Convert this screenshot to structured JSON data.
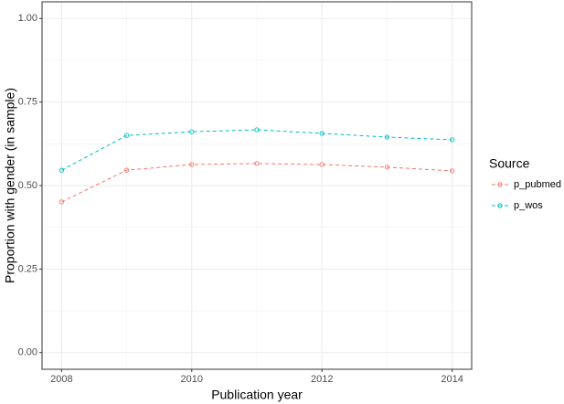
{
  "chart_data": {
    "type": "line",
    "x_label": "Publication year",
    "y_label": "Proportion with gender (in sample)",
    "x": [
      2008,
      2009,
      2010,
      2011,
      2012,
      2013,
      2014
    ],
    "series": [
      {
        "name": "p_pubmed",
        "color": "#F8766D",
        "values": [
          0.451,
          0.546,
          0.563,
          0.566,
          0.563,
          0.555,
          0.544
        ]
      },
      {
        "name": "p_wos",
        "color": "#00BFC4",
        "values": [
          0.546,
          0.65,
          0.661,
          0.667,
          0.656,
          0.645,
          0.637
        ]
      }
    ],
    "xlim": [
      2007.7,
      2014.3
    ],
    "xticks": [
      2008,
      2010,
      2012,
      2014
    ],
    "ylim": [
      -0.05,
      1.05
    ],
    "yticks": [
      {
        "value": 0,
        "label": "0.00"
      },
      {
        "value": 0.25,
        "label": "0.25"
      },
      {
        "value": 0.5,
        "label": "0.50"
      },
      {
        "value": 0.75,
        "label": "0.75"
      },
      {
        "value": 1,
        "label": "1.00"
      }
    ],
    "legend_title": "Source",
    "legend_position": "right",
    "grid": true
  }
}
